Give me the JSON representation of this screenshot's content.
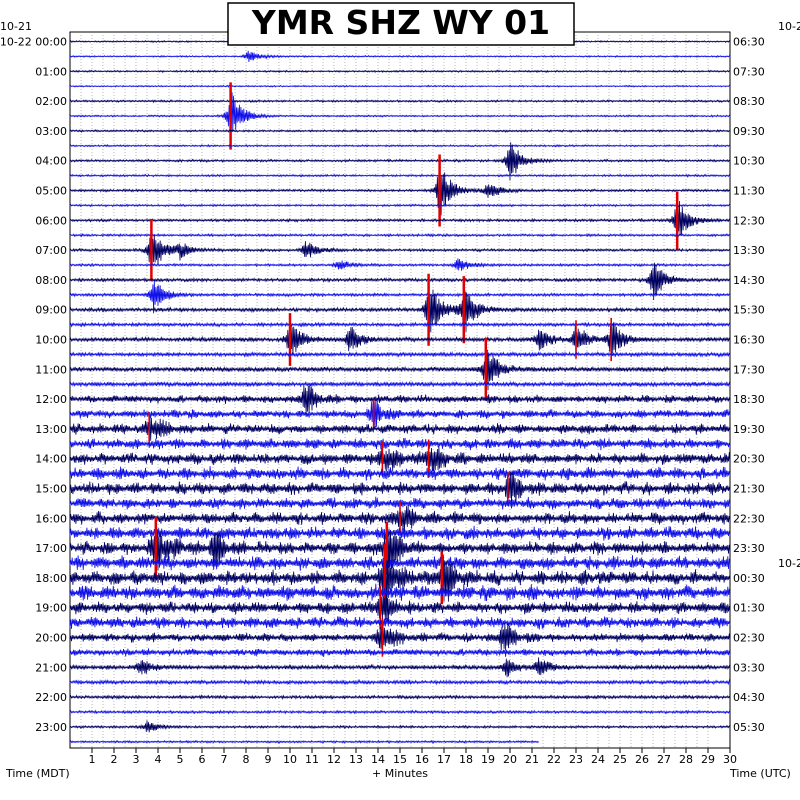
{
  "chart_data": {
    "type": "helicorder",
    "title": "YMR SHZ WY 01",
    "xlabel": "+ Minutes",
    "left_axis_label": "Time (MDT)",
    "right_axis_label": "Time (UTC)",
    "x_ticks": [
      1,
      2,
      3,
      4,
      5,
      6,
      7,
      8,
      9,
      10,
      11,
      12,
      13,
      14,
      15,
      16,
      17,
      18,
      19,
      20,
      21,
      22,
      23,
      24,
      25,
      26,
      27,
      28,
      29,
      30
    ],
    "xlim": [
      0,
      30
    ],
    "left_top_date": "10-21",
    "left_date_first_row": "10-22",
    "right_top_date": "10-2",
    "right_mid_date": "10-2",
    "left_labels": [
      "10-22 00:00",
      "01:00",
      "02:00",
      "03:00",
      "04:00",
      "05:00",
      "06:00",
      "07:00",
      "08:00",
      "09:00",
      "10:00",
      "11:00",
      "12:00",
      "13:00",
      "14:00",
      "15:00",
      "16:00",
      "17:00",
      "18:00",
      "19:00",
      "20:00",
      "21:00",
      "22:00",
      "23:00"
    ],
    "right_labels": [
      "06:30",
      "07:30",
      "08:30",
      "09:30",
      "10:30",
      "11:30",
      "12:30",
      "13:30",
      "14:30",
      "15:30",
      "16:30",
      "17:30",
      "18:30",
      "19:30",
      "20:30",
      "21:30",
      "22:30",
      "23:30",
      "00:30",
      "01:30",
      "02:30",
      "03:30",
      "04:30",
      "05:30"
    ],
    "rows_per_hour": 2,
    "minutes_per_row": 30,
    "trace_colors": [
      "#000060",
      "#1010e8"
    ],
    "clip_color": "#e00000",
    "grid": "dotted-vertical",
    "row_noise_level": [
      0.6,
      0.6,
      0.7,
      0.6,
      0.8,
      0.7,
      0.8,
      0.7,
      0.9,
      0.8,
      0.9,
      0.8,
      1.0,
      0.9,
      1.0,
      0.9,
      1.2,
      1.1,
      1.4,
      1.3,
      1.6,
      1.5,
      1.8,
      1.7,
      2.4,
      2.6,
      3.0,
      3.2,
      3.4,
      3.6,
      3.6,
      3.4,
      3.6,
      3.8,
      3.8,
      4.0,
      4.2,
      4.4,
      3.6,
      3.4,
      2.6,
      2.2,
      1.6,
      1.4,
      1.2,
      1.0,
      0.9,
      0.8
    ],
    "events": [
      {
        "row": 1,
        "minute": 8.1,
        "amp": 6
      },
      {
        "row": 5,
        "minute": 7.3,
        "amp": 28,
        "clipped": true
      },
      {
        "row": 8,
        "minute": 20.0,
        "amp": 22
      },
      {
        "row": 10,
        "minute": 16.8,
        "amp": 30,
        "clipped": true
      },
      {
        "row": 10,
        "minute": 19.0,
        "amp": 10
      },
      {
        "row": 12,
        "minute": 27.6,
        "amp": 24,
        "clipped": true
      },
      {
        "row": 14,
        "minute": 3.7,
        "amp": 26,
        "clipped": true
      },
      {
        "row": 14,
        "minute": 5.0,
        "amp": 8
      },
      {
        "row": 14,
        "minute": 10.7,
        "amp": 10
      },
      {
        "row": 15,
        "minute": 12.2,
        "amp": 6
      },
      {
        "row": 15,
        "minute": 17.6,
        "amp": 8
      },
      {
        "row": 16,
        "minute": 26.5,
        "amp": 22
      },
      {
        "row": 17,
        "minute": 3.8,
        "amp": 18
      },
      {
        "row": 18,
        "minute": 16.3,
        "amp": 30,
        "clipped": true
      },
      {
        "row": 18,
        "minute": 17.9,
        "amp": 28,
        "clipped": true
      },
      {
        "row": 20,
        "minute": 10.0,
        "amp": 22,
        "clipped": true
      },
      {
        "row": 20,
        "minute": 12.7,
        "amp": 14
      },
      {
        "row": 20,
        "minute": 21.3,
        "amp": 12
      },
      {
        "row": 20,
        "minute": 23.0,
        "amp": 16,
        "clipped": true
      },
      {
        "row": 20,
        "minute": 24.6,
        "amp": 18,
        "clipped": true
      },
      {
        "row": 22,
        "minute": 18.9,
        "amp": 26,
        "clipped": true
      },
      {
        "row": 24,
        "minute": 10.6,
        "amp": 14
      },
      {
        "row": 25,
        "minute": 13.8,
        "amp": 12,
        "clipped": true
      },
      {
        "row": 26,
        "minute": 3.6,
        "amp": 14,
        "clipped": true
      },
      {
        "row": 28,
        "minute": 14.2,
        "amp": 14,
        "clipped": true
      },
      {
        "row": 28,
        "minute": 16.3,
        "amp": 16,
        "clipped": true
      },
      {
        "row": 30,
        "minute": 19.9,
        "amp": 14,
        "clipped": true
      },
      {
        "row": 32,
        "minute": 15.0,
        "amp": 14,
        "clipped": true
      },
      {
        "row": 34,
        "minute": 3.9,
        "amp": 26,
        "clipped": true
      },
      {
        "row": 34,
        "minute": 6.5,
        "amp": 14
      },
      {
        "row": 34,
        "minute": 14.4,
        "amp": 22,
        "clipped": true
      },
      {
        "row": 36,
        "minute": 14.3,
        "amp": 28,
        "clipped": true
      },
      {
        "row": 36,
        "minute": 16.9,
        "amp": 22,
        "clipped": true
      },
      {
        "row": 38,
        "minute": 14.1,
        "amp": 18,
        "clipped": true
      },
      {
        "row": 40,
        "minute": 14.2,
        "amp": 16,
        "clipped": true
      },
      {
        "row": 40,
        "minute": 19.6,
        "amp": 14
      },
      {
        "row": 42,
        "minute": 3.2,
        "amp": 8
      },
      {
        "row": 42,
        "minute": 21.3,
        "amp": 10
      },
      {
        "row": 42,
        "minute": 19.8,
        "amp": 10
      },
      {
        "row": 46,
        "minute": 3.5,
        "amp": 6
      }
    ]
  }
}
